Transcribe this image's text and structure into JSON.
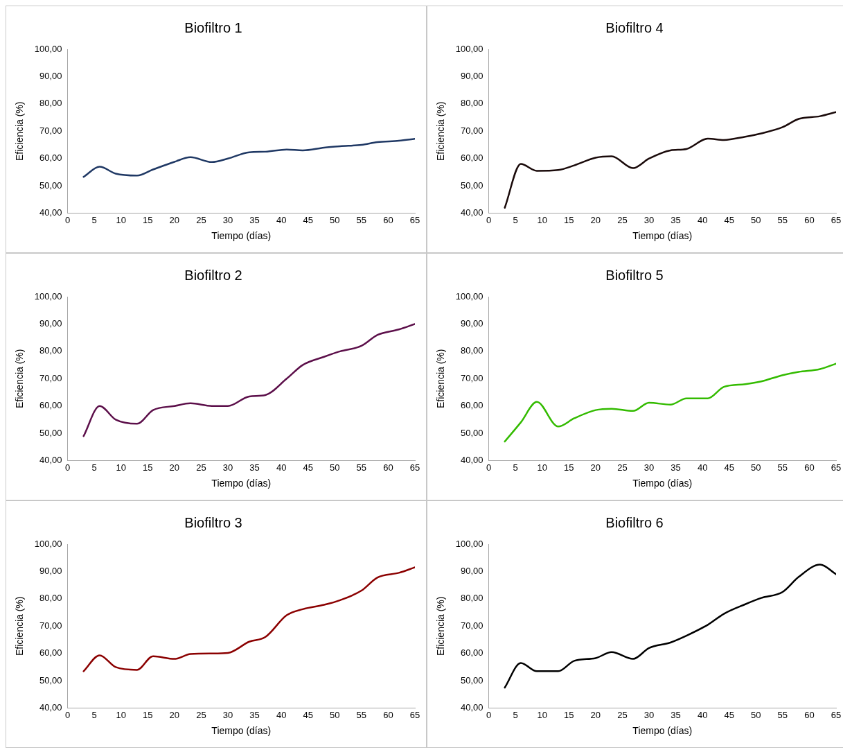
{
  "chart_data": [
    {
      "type": "line",
      "title": "Biofiltro 1",
      "xlabel": "Tiempo (días)",
      "ylabel": "Eficiencia (%)",
      "x": [
        3,
        6,
        9,
        13,
        16,
        20,
        23,
        27,
        30,
        34,
        37,
        41,
        44,
        48,
        51,
        55,
        58,
        62,
        65
      ],
      "series": [
        {
          "color": "#1f3864",
          "values": [
            53.3,
            57,
            54.5,
            53.8,
            56,
            58.8,
            60.5,
            58.7,
            60,
            62.3,
            62.5,
            63.3,
            63,
            64,
            64.5,
            65,
            66,
            66.5,
            67.2
          ]
        }
      ],
      "xlim": [
        0,
        65
      ],
      "xticks": [
        0,
        5,
        10,
        15,
        20,
        25,
        30,
        35,
        40,
        45,
        50,
        55,
        60,
        65
      ],
      "ylim": [
        40,
        100
      ],
      "yticks": [
        {
          "value": 40,
          "label": "40,00"
        },
        {
          "value": 50,
          "label": "50,00"
        },
        {
          "value": 60,
          "label": "60,00"
        },
        {
          "value": 70,
          "label": "70,00"
        },
        {
          "value": 80,
          "label": "80,00"
        },
        {
          "value": 90,
          "label": "90,00"
        },
        {
          "value": 100,
          "label": "100,00"
        }
      ],
      "grid": false,
      "legend": false,
      "marker": "none",
      "line_style": "solid"
    },
    {
      "type": "line",
      "title": "Biofiltro 4",
      "xlabel": "Tiempo (días)",
      "ylabel": "Eficiencia (%)",
      "x": [
        3,
        6,
        9,
        13,
        16,
        20,
        23,
        27,
        30,
        34,
        37,
        41,
        44,
        48,
        51,
        55,
        58,
        62,
        65
      ],
      "series": [
        {
          "color": "#1a0a0a",
          "values": [
            42,
            58,
            55.5,
            55.8,
            57.5,
            60.3,
            60.8,
            56.5,
            60,
            63,
            63.5,
            67.3,
            66.8,
            68,
            69.2,
            71.5,
            74.5,
            75.5,
            77
          ]
        }
      ],
      "xlim": [
        0,
        65
      ],
      "xticks": [
        0,
        5,
        10,
        15,
        20,
        25,
        30,
        35,
        40,
        45,
        50,
        55,
        60,
        65
      ],
      "ylim": [
        40,
        100
      ],
      "yticks": [
        {
          "value": 40,
          "label": "40,00"
        },
        {
          "value": 50,
          "label": "50,00"
        },
        {
          "value": 60,
          "label": "60,00"
        },
        {
          "value": 70,
          "label": "70,00"
        },
        {
          "value": 80,
          "label": "80,00"
        },
        {
          "value": 90,
          "label": "90,00"
        },
        {
          "value": 100,
          "label": "100,00"
        }
      ],
      "grid": false,
      "legend": false,
      "marker": "none",
      "line_style": "solid"
    },
    {
      "type": "line",
      "title": "Biofiltro 2",
      "xlabel": "Tiempo (días)",
      "ylabel": "Eficiencia (%)",
      "x": [
        3,
        6,
        9,
        13,
        16,
        20,
        23,
        27,
        30,
        34,
        37,
        41,
        44,
        48,
        51,
        55,
        58,
        62,
        65
      ],
      "series": [
        {
          "color": "#5c0f4a",
          "values": [
            49,
            60,
            55,
            53.5,
            58.5,
            60,
            61,
            60,
            60,
            63.5,
            64,
            70,
            75,
            78,
            80,
            82,
            86,
            88,
            90
          ]
        }
      ],
      "xlim": [
        0,
        65
      ],
      "xticks": [
        0,
        5,
        10,
        15,
        20,
        25,
        30,
        35,
        40,
        45,
        50,
        55,
        60,
        65
      ],
      "ylim": [
        40,
        100
      ],
      "yticks": [
        {
          "value": 40,
          "label": "40,00"
        },
        {
          "value": 50,
          "label": "50,00"
        },
        {
          "value": 60,
          "label": "60,00"
        },
        {
          "value": 70,
          "label": "70,00"
        },
        {
          "value": 80,
          "label": "80,00"
        },
        {
          "value": 90,
          "label": "90,00"
        },
        {
          "value": 100,
          "label": "100,00"
        }
      ],
      "grid": false,
      "legend": false,
      "marker": "none",
      "line_style": "solid"
    },
    {
      "type": "line",
      "title": "Biofiltro 5",
      "xlabel": "Tiempo (días)",
      "ylabel": "Eficiencia (%)",
      "x": [
        3,
        6,
        9,
        13,
        16,
        20,
        23,
        27,
        30,
        34,
        37,
        41,
        44,
        48,
        51,
        55,
        58,
        62,
        65
      ],
      "series": [
        {
          "color": "#33bb00",
          "values": [
            47,
            54,
            61.5,
            52.5,
            55.5,
            58.5,
            59,
            58.2,
            61.2,
            60.5,
            62.8,
            62.8,
            67,
            68,
            69,
            71.3,
            72.5,
            73.5,
            75.5
          ]
        }
      ],
      "xlim": [
        0,
        65
      ],
      "xticks": [
        0,
        5,
        10,
        15,
        20,
        25,
        30,
        35,
        40,
        45,
        50,
        55,
        60,
        65
      ],
      "ylim": [
        40,
        100
      ],
      "yticks": [
        {
          "value": 40,
          "label": "40,00"
        },
        {
          "value": 50,
          "label": "50,00"
        },
        {
          "value": 60,
          "label": "60,00"
        },
        {
          "value": 70,
          "label": "70,00"
        },
        {
          "value": 80,
          "label": "80,00"
        },
        {
          "value": 90,
          "label": "90,00"
        },
        {
          "value": 100,
          "label": "100,00"
        }
      ],
      "grid": false,
      "legend": false,
      "marker": "none",
      "line_style": "solid"
    },
    {
      "type": "line",
      "title": "Biofiltro 3",
      "xlabel": "Tiempo (días)",
      "ylabel": "Eficiencia (%)",
      "x": [
        3,
        6,
        9,
        13,
        16,
        20,
        23,
        27,
        30,
        34,
        37,
        41,
        44,
        48,
        51,
        55,
        58,
        62,
        65
      ],
      "series": [
        {
          "color": "#8b0000",
          "values": [
            53.5,
            59.3,
            55,
            54,
            59,
            58,
            59.8,
            60,
            60.2,
            64.3,
            66,
            74,
            76.2,
            77.8,
            79.5,
            83,
            87.8,
            89.5,
            91.5
          ]
        }
      ],
      "xlim": [
        0,
        65
      ],
      "xticks": [
        0,
        5,
        10,
        15,
        20,
        25,
        30,
        35,
        40,
        45,
        50,
        55,
        60,
        65
      ],
      "ylim": [
        40,
        100
      ],
      "yticks": [
        {
          "value": 40,
          "label": "40,00"
        },
        {
          "value": 50,
          "label": "50,00"
        },
        {
          "value": 60,
          "label": "60,00"
        },
        {
          "value": 70,
          "label": "70,00"
        },
        {
          "value": 80,
          "label": "80,00"
        },
        {
          "value": 90,
          "label": "90,00"
        },
        {
          "value": 100,
          "label": "100,00"
        }
      ],
      "grid": false,
      "legend": false,
      "marker": "none",
      "line_style": "solid"
    },
    {
      "type": "line",
      "title": "Biofiltro 6",
      "xlabel": "Tiempo (días)",
      "ylabel": "Eficiencia (%)",
      "x": [
        3,
        6,
        9,
        13,
        16,
        20,
        23,
        27,
        30,
        34,
        37,
        41,
        44,
        48,
        51,
        55,
        58,
        62,
        65
      ],
      "series": [
        {
          "color": "#000000",
          "values": [
            47.5,
            56.5,
            53.5,
            53.5,
            57.3,
            58.3,
            60.5,
            58,
            62,
            64,
            66.5,
            70.5,
            74.5,
            78,
            80.3,
            82.5,
            88,
            92.5,
            89
          ]
        }
      ],
      "xlim": [
        0,
        65
      ],
      "xticks": [
        0,
        5,
        10,
        15,
        20,
        25,
        30,
        35,
        40,
        45,
        50,
        55,
        60,
        65
      ],
      "ylim": [
        40,
        100
      ],
      "yticks": [
        {
          "value": 40,
          "label": "40,00"
        },
        {
          "value": 50,
          "label": "50,00"
        },
        {
          "value": 60,
          "label": "60,00"
        },
        {
          "value": 70,
          "label": "70,00"
        },
        {
          "value": 80,
          "label": "80,00"
        },
        {
          "value": 90,
          "label": "90,00"
        },
        {
          "value": 100,
          "label": "100,00"
        }
      ],
      "grid": false,
      "legend": false,
      "marker": "none",
      "line_style": "solid"
    }
  ]
}
